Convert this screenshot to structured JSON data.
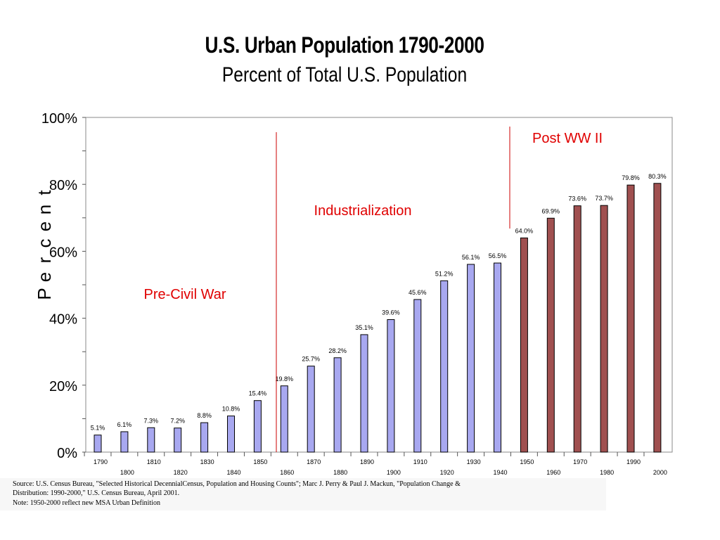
{
  "chart_data": {
    "type": "bar",
    "title": "U.S. Urban Population 1790-2000",
    "subtitle": "Percent of Total U.S. Population",
    "ylabel": "Percent",
    "ylim": [
      0,
      100
    ],
    "yticks": [
      "0%",
      "20%",
      "40%",
      "60%",
      "80%",
      "100%"
    ],
    "categories": [
      "1790",
      "1800",
      "1810",
      "1820",
      "1830",
      "1840",
      "1850",
      "1860",
      "1870",
      "1880",
      "1890",
      "1900",
      "1910",
      "1920",
      "1930",
      "1940",
      "1950",
      "1960",
      "1970",
      "1980",
      "1990",
      "2000"
    ],
    "values": [
      5.1,
      6.1,
      7.3,
      7.2,
      8.8,
      10.8,
      15.4,
      19.8,
      25.7,
      28.2,
      35.1,
      39.6,
      45.6,
      51.2,
      56.1,
      56.5,
      64.0,
      69.9,
      73.6,
      73.7,
      79.8,
      80.3
    ],
    "data_labels": [
      "5.1%",
      "6.1%",
      "7.3%",
      "7.2%",
      "8.8%",
      "10.8%",
      "15.4%",
      "19.8%",
      "25.7%",
      "28.2%",
      "35.1%",
      "39.6%",
      "45.6%",
      "51.2%",
      "56.1%",
      "56.5%",
      "64.0%",
      "69.9%",
      "73.6%",
      "73.7%",
      "79.8%",
      "80.3%"
    ],
    "bar_colors": {
      "pre_1950": "#a8a8f0",
      "post_1950": "#a05050"
    },
    "grid": false,
    "annotations": [
      {
        "text": "Pre-Civil War",
        "color": "#e00000"
      },
      {
        "text": "Industrialization",
        "color": "#e00000"
      },
      {
        "text": "Post WW II",
        "color": "#e00000"
      }
    ],
    "divider_color": "#cc0000"
  },
  "source_text": {
    "line1": "Source: U.S. Census Bureau, \"Selected Historical DecennialCensus, Population and Housing Counts\"; Marc J. Perry & Paul J. Mackun, \"Population Change &",
    "line2": "Distribution: 1990-2000,\" U.S. Census Bureau, April 2001.",
    "line3": "Note:  1950-2000 reflect new MSA Urban Definition"
  }
}
